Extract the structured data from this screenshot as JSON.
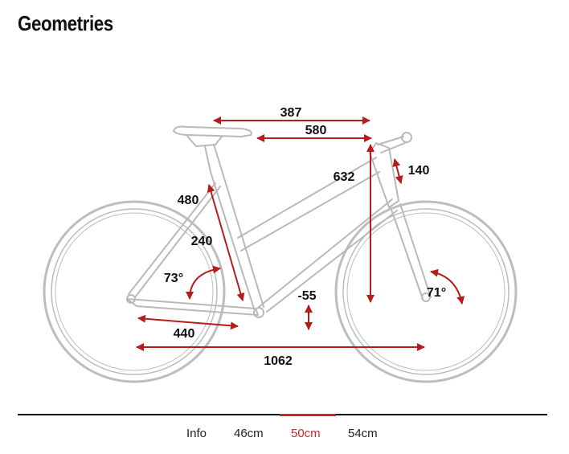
{
  "page": {
    "title": "Geometries"
  },
  "colors": {
    "measure": "#b71c1c",
    "frame": "#b9b9b9",
    "active_tab": "#c62828",
    "text": "#111111"
  },
  "dimensions": {
    "reach": "387",
    "top_tube": "580",
    "stack": "632",
    "head_tube": "140",
    "seat_tube": "480",
    "seat_tube_center": "240",
    "seat_angle": "73°",
    "head_angle": "71°",
    "bb_drop": "-55",
    "chainstay": "440",
    "wheelbase": "1062"
  },
  "tabs": [
    {
      "label": "Info",
      "active": false
    },
    {
      "label": "46cm",
      "active": false
    },
    {
      "label": "50cm",
      "active": true
    },
    {
      "label": "54cm",
      "active": false
    }
  ]
}
